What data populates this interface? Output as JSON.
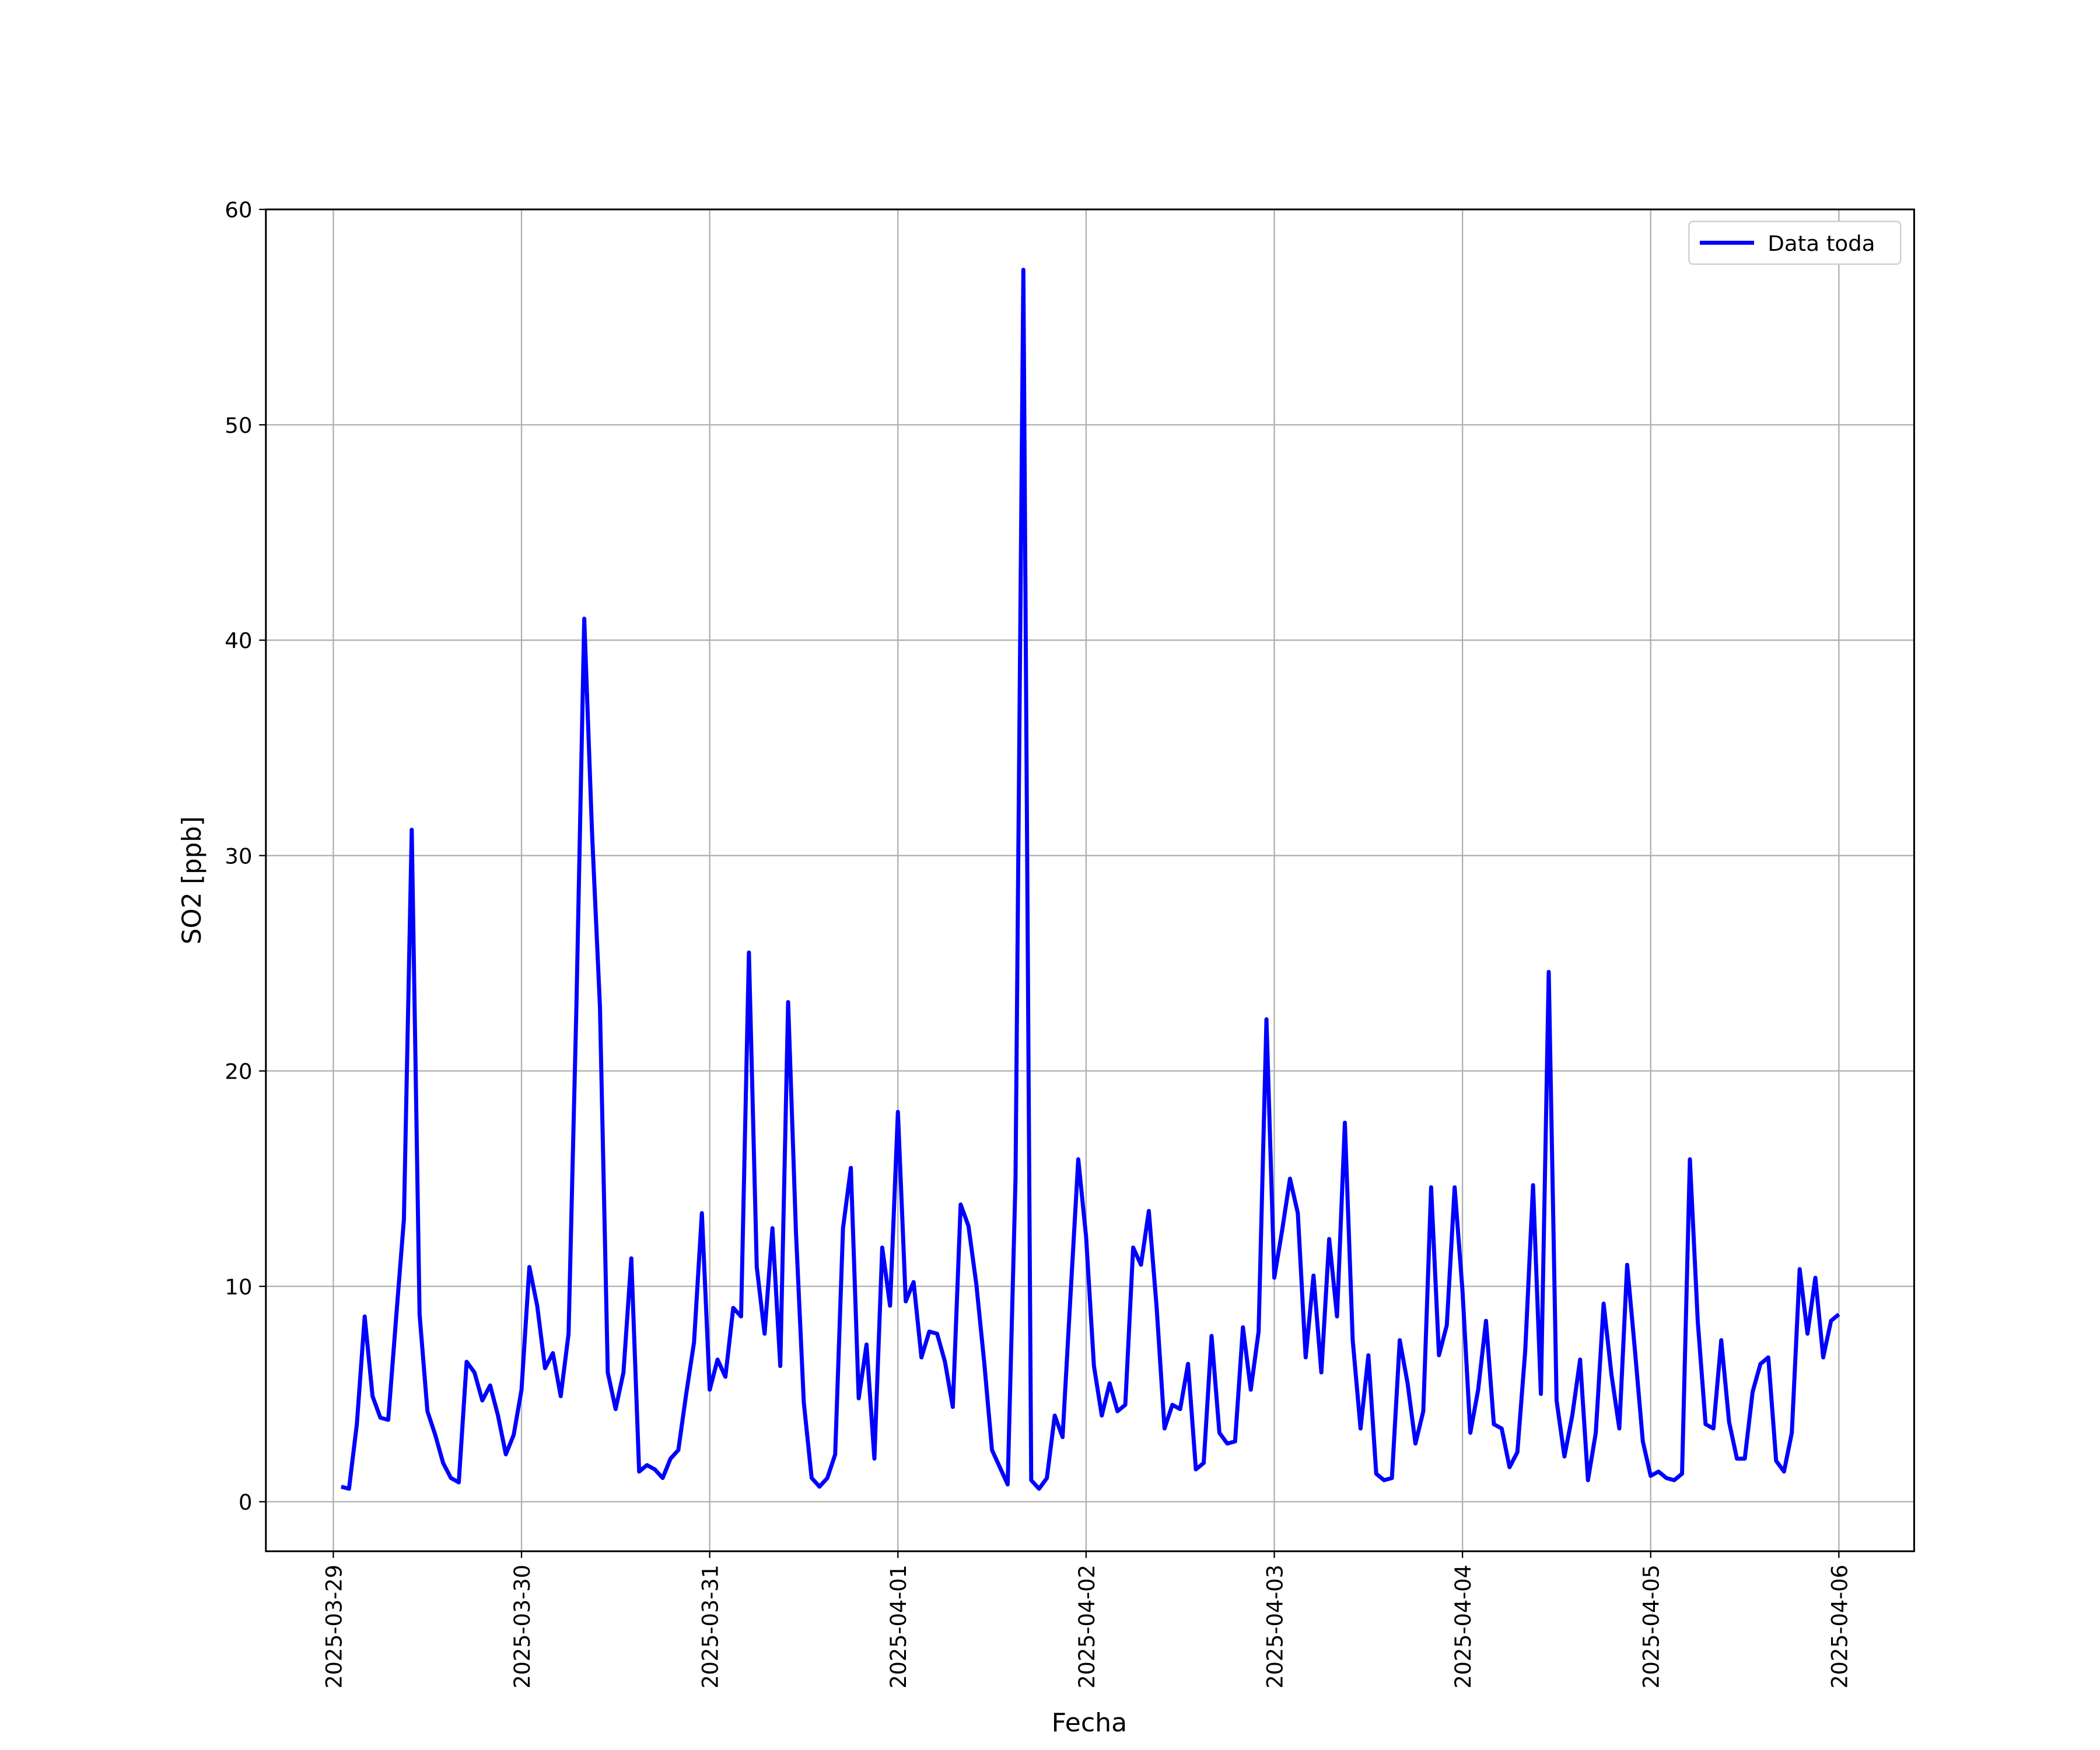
{
  "chart_data": {
    "type": "line",
    "x_label": "Fecha",
    "y_label": "SO2 [ppb]",
    "x": [
      1,
      2,
      3,
      4,
      5,
      6,
      7,
      8,
      9,
      10,
      11,
      12,
      13,
      14,
      15,
      16,
      17,
      18,
      19,
      20,
      21,
      22,
      23,
      24,
      25,
      26,
      27,
      28,
      29,
      30,
      31,
      32,
      33,
      34,
      35,
      36,
      37,
      38,
      39,
      40,
      41,
      42,
      43,
      44,
      45,
      46,
      47,
      48,
      49,
      50,
      51,
      52,
      53,
      54,
      55,
      56,
      57,
      58,
      59,
      60,
      61,
      62,
      63,
      64,
      65,
      66,
      67,
      68,
      69,
      70,
      71,
      72,
      73,
      74,
      75,
      76,
      77,
      78,
      79,
      80,
      81,
      82,
      83,
      84,
      85,
      86,
      87,
      88,
      89,
      90,
      91,
      92,
      93,
      94,
      95,
      96,
      97,
      98,
      99,
      100,
      101,
      102,
      103,
      104,
      105,
      106,
      107,
      108,
      109,
      110,
      111,
      112,
      113,
      114,
      115,
      116,
      117,
      118,
      119,
      120,
      121,
      122,
      123,
      124,
      125,
      126,
      127,
      128,
      129,
      130,
      131,
      132,
      133,
      134,
      135,
      136,
      137,
      138,
      139,
      140,
      141,
      142,
      143,
      144,
      145,
      146,
      147,
      148,
      149,
      150,
      151,
      152,
      153,
      154,
      155,
      156,
      157,
      158,
      159,
      160,
      161,
      162,
      163,
      164,
      165,
      166,
      167,
      168,
      169,
      170,
      171,
      172,
      173,
      174,
      175,
      176,
      177,
      178,
      179,
      180,
      181,
      182,
      183,
      184,
      185,
      186,
      187,
      188,
      189,
      190,
      191,
      192
    ],
    "series": [
      {
        "name": "Data toda",
        "color": "#0000ff",
        "values": [
          0.7,
          0.6,
          3.6,
          8.6,
          4.9,
          3.9,
          3.8,
          8.5,
          13.1,
          31.2,
          8.7,
          4.2,
          3.1,
          1.8,
          1.1,
          0.9,
          6.5,
          6.0,
          4.7,
          5.4,
          4.0,
          2.2,
          3.1,
          5.2,
          10.9,
          9.1,
          6.2,
          6.9,
          4.9,
          7.8,
          23,
          41.0,
          31,
          23,
          6.0,
          4.3,
          6.0,
          11.3,
          1.4,
          1.7,
          1.5,
          1.1,
          2.0,
          2.4,
          5.0,
          7.4,
          13.4,
          5.2,
          6.6,
          5.8,
          9.0,
          8.6,
          25.5,
          10.9,
          7.8,
          12.7,
          6.3,
          23.2,
          12.5,
          4.6,
          1.1,
          0.7,
          1.1,
          2.2,
          12.7,
          15.5,
          4.8,
          7.3,
          2.0,
          11.8,
          9.1,
          18.1,
          9.3,
          10.2,
          6.7,
          7.9,
          7.8,
          6.5,
          4.4,
          13.8,
          12.8,
          10.1,
          6.5,
          2.4,
          1.6,
          0.8,
          15,
          57.2,
          1.0,
          0.6,
          1.1,
          4.0,
          3.0,
          9.5,
          15.9,
          12.3,
          6.3,
          4.0,
          5.5,
          4.2,
          4.5,
          11.8,
          11.0,
          13.5,
          9.0,
          3.4,
          4.5,
          4.3,
          6.4,
          1.5,
          1.8,
          7.7,
          3.2,
          2.7,
          2.8,
          8.1,
          5.2,
          7.9,
          22.4,
          10.4,
          12.6,
          15.0,
          13.4,
          6.7,
          10.5,
          6.0,
          12.2,
          8.6,
          17.6,
          7.5,
          3.4,
          6.8,
          1.3,
          1.0,
          1.1,
          7.5,
          5.5,
          2.7,
          4.2,
          14.6,
          6.8,
          8.2,
          14.6,
          9.8,
          3.2,
          5.2,
          8.4,
          3.6,
          3.4,
          1.6,
          2.3,
          7.0,
          14.7,
          5.0,
          24.6,
          4.7,
          2.1,
          4.0,
          6.6,
          1.0,
          3.2,
          9.2,
          5.9,
          3.4,
          11.0,
          7.0,
          2.8,
          1.2,
          1.4,
          1.1,
          1.0,
          1.3,
          15.9,
          8.4,
          3.6,
          3.4,
          7.5,
          3.7,
          2.0,
          2.0,
          5.1,
          6.4,
          6.7,
          1.9,
          1.4,
          3.2,
          10.8,
          7.8,
          10.4,
          6.7,
          8.4,
          8.7
        ]
      }
    ],
    "xlim": [
      -8.6,
      201.6
    ],
    "xticks": [
      {
        "value": 0,
        "label": "2025-03-29"
      },
      {
        "value": 24,
        "label": "2025-03-30"
      },
      {
        "value": 48,
        "label": "2025-03-31"
      },
      {
        "value": 72,
        "label": "2025-04-01"
      },
      {
        "value": 96,
        "label": "2025-04-02"
      },
      {
        "value": 120,
        "label": "2025-04-03"
      },
      {
        "value": 144,
        "label": "2025-04-04"
      },
      {
        "value": 168,
        "label": "2025-04-05"
      },
      {
        "value": 192,
        "label": "2025-04-06"
      }
    ],
    "ylim": [
      -2.3,
      60
    ],
    "yticks": [
      0,
      10,
      20,
      30,
      40,
      50,
      60
    ],
    "grid": true,
    "legend": "upper right"
  }
}
